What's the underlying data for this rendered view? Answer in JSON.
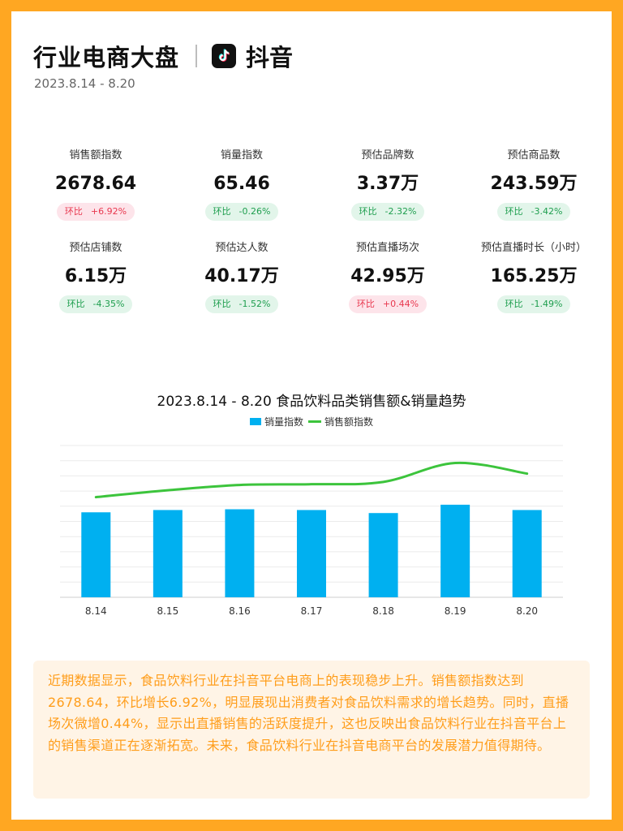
{
  "header": {
    "title": "行业电商大盘",
    "platform": "抖音",
    "date_range": "2023.8.14 - 8.20"
  },
  "metrics": [
    {
      "label": "销售额指数",
      "value": "2678.64",
      "badge_prefix": "环比",
      "change": "+6.92%",
      "trend": "up"
    },
    {
      "label": "销量指数",
      "value": "65.46",
      "badge_prefix": "环比",
      "change": "-0.26%",
      "trend": "down"
    },
    {
      "label": "预估品牌数",
      "value": "3.37万",
      "badge_prefix": "环比",
      "change": "-2.32%",
      "trend": "down"
    },
    {
      "label": "预估商品数",
      "value": "243.59万",
      "badge_prefix": "环比",
      "change": "-3.42%",
      "trend": "down"
    },
    {
      "label": "预估店铺数",
      "value": "6.15万",
      "badge_prefix": "环比",
      "change": "-4.35%",
      "trend": "down"
    },
    {
      "label": "预估达人数",
      "value": "40.17万",
      "badge_prefix": "环比",
      "change": "-1.52%",
      "trend": "down"
    },
    {
      "label": "预估直播场次",
      "value": "42.95万",
      "badge_prefix": "环比",
      "change": "+0.44%",
      "trend": "up"
    },
    {
      "label": "预估直播时长（小时）",
      "value": "165.25万",
      "badge_prefix": "环比",
      "change": "-1.49%",
      "trend": "down"
    }
  ],
  "chart_data": {
    "type": "bar",
    "title": "2023.8.14 - 8.20 食品饮料品类销售额&销量趋势",
    "categories": [
      "8.14",
      "8.15",
      "8.16",
      "8.17",
      "8.18",
      "8.19",
      "8.20"
    ],
    "series": [
      {
        "name": "销量指数",
        "type": "bar",
        "color": "#00B0F0",
        "values": [
          5.6,
          5.75,
          5.8,
          5.75,
          5.55,
          6.1,
          5.75
        ]
      },
      {
        "name": "销售额指数",
        "type": "line",
        "color": "#3CC43C",
        "values": [
          6.6,
          7.05,
          7.4,
          7.45,
          7.6,
          8.85,
          8.15
        ]
      }
    ],
    "ylim": [
      0,
      10
    ],
    "grid": true,
    "legend": "top-center",
    "y_axis_labels_shown": false
  },
  "summary": {
    "text": "近期数据显示，食品饮料行业在抖音平台电商上的表现稳步上升。销售额指数达到2678.64，环比增长6.92%，明显展现出消费者对食品饮料需求的增长趋势。同时，直播场次微增0.44%，显示出直播销售的活跃度提升，这也反映出食品饮料行业在抖音平台上的销售渠道正在逐渐拓宽。未来，食品饮料行业在抖音电商平台的发展潜力值得期待。"
  }
}
